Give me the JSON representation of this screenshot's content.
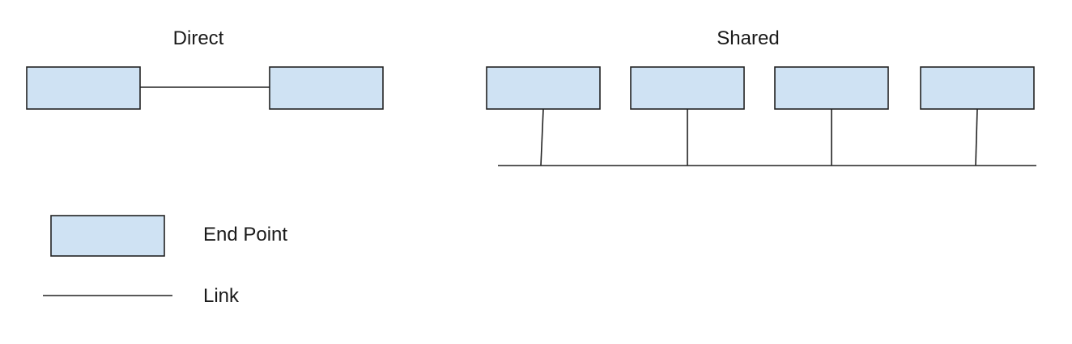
{
  "colors": {
    "endpoint_fill": "#cfe2f3",
    "stroke": "#222222",
    "background": "#ffffff"
  },
  "direct": {
    "title": "Direct"
  },
  "shared": {
    "title": "Shared"
  },
  "legend": {
    "endpoint_label": "End Point",
    "link_label": "Link"
  }
}
